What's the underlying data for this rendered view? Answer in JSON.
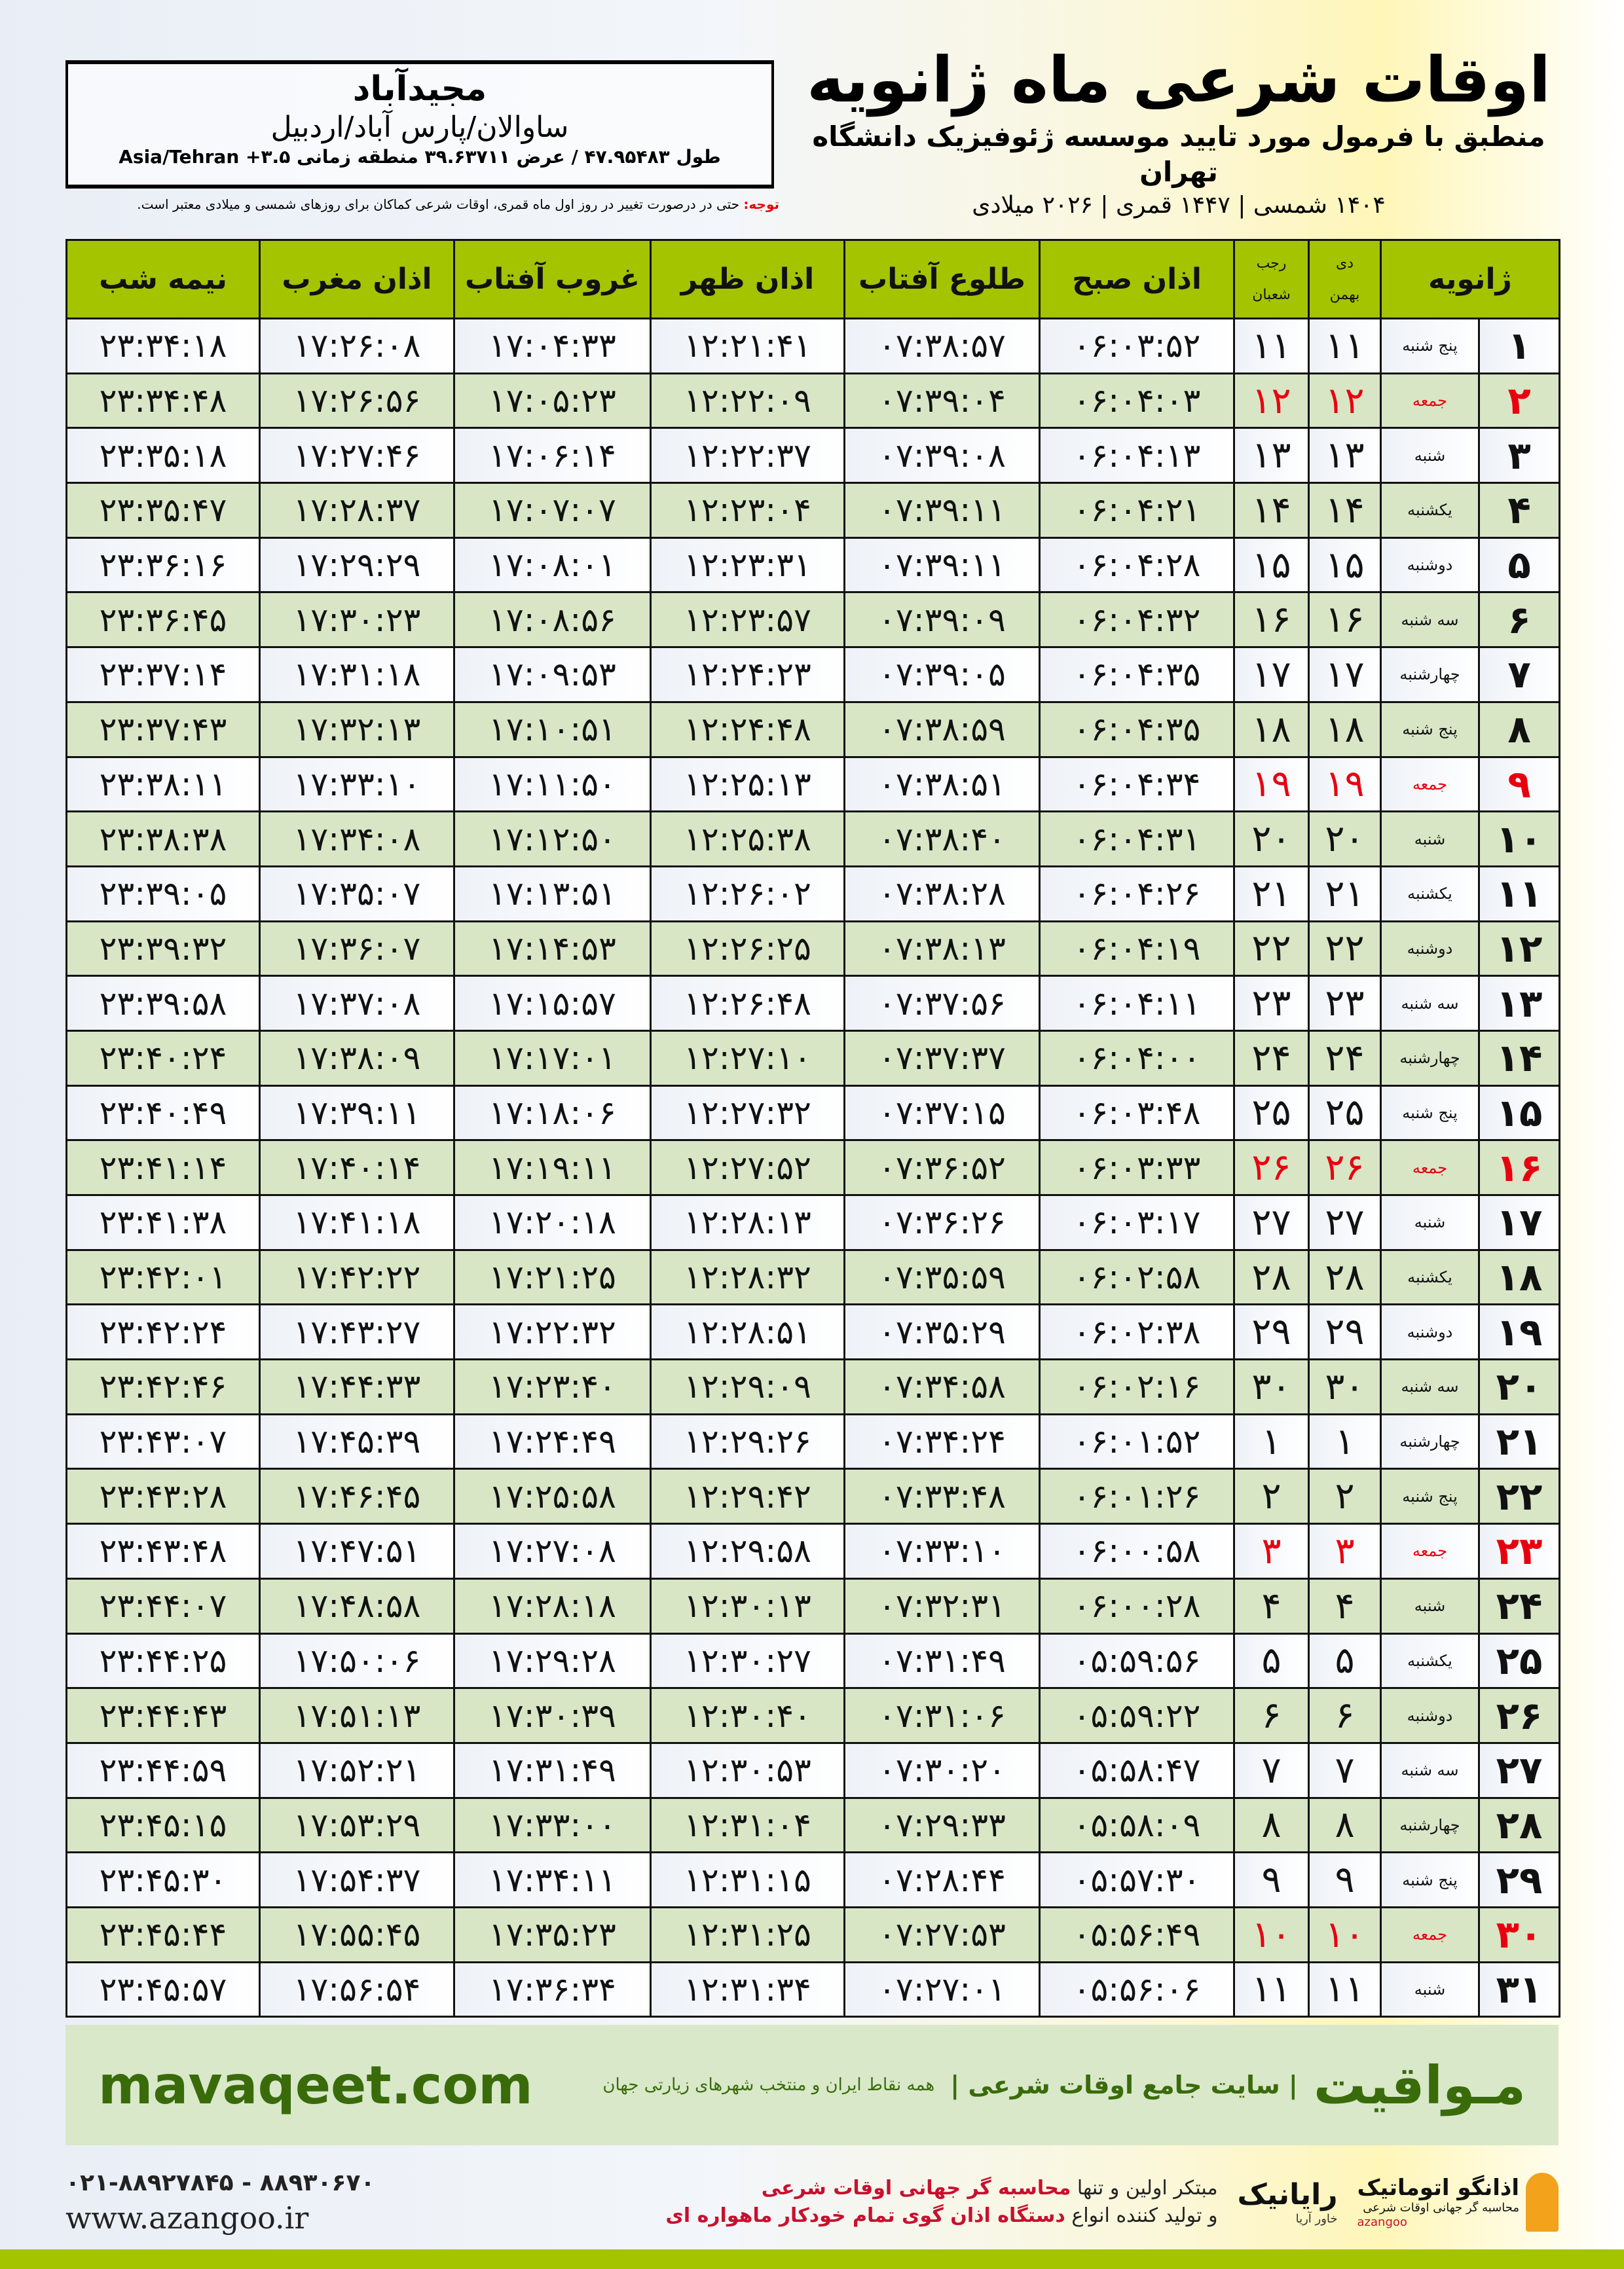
{
  "header": {
    "title": "اوقات شرعی ماه ژانویه",
    "subtitle": "منطبق با فرمول مورد تایید موسسه ژئوفیزیک دانشگاه تهران",
    "dates": "۱۴۰۴ شمسی | ۱۴۴۷ قمری | ۲۰۲۶ میلادی"
  },
  "location": {
    "city": "مجیدآباد",
    "region": "ساوالان/پارس آباد/اردبیل",
    "coords": "طول ۴۷.۹۵۴۸۳ / عرض ۳۹.۶۳۷۱۱ منطقه زمانی ۳.۵+ Asia/Tehran"
  },
  "note": {
    "label": "توجه:",
    "text": " حتی در درصورت تغییر در روز اول ماه قمری، اوقات شرعی کماکان برای روزهای شمسی و میلادی معتبر است."
  },
  "table": {
    "headers": {
      "day": "ژانویه",
      "dey": "دی",
      "bahman": "بهمن",
      "rajab": "رجب",
      "shaban": "شعبان",
      "sobh": "اذان صبح",
      "tolu": "طلوع آفتاب",
      "zohr": "اذان ظهر",
      "ghorub": "غروب آفتاب",
      "maghreb": "اذان مغرب",
      "nimeh": "نیمه شب"
    },
    "rows": [
      {
        "day": "۱",
        "wd": "پنج شنبه",
        "sh": "۱۱",
        "q": "۱۱",
        "sobh": "۰۶:۰۳:۵۲",
        "tolu": "۰۷:۳۸:۵۷",
        "zohr": "۱۲:۲۱:۴۱",
        "ghorub": "۱۷:۰۴:۳۳",
        "maghreb": "۱۷:۲۶:۰۸",
        "nimeh": "۲۳:۳۴:۱۸",
        "holiday": false
      },
      {
        "day": "۲",
        "wd": "جمعه",
        "sh": "۱۲",
        "q": "۱۲",
        "sobh": "۰۶:۰۴:۰۳",
        "tolu": "۰۷:۳۹:۰۴",
        "zohr": "۱۲:۲۲:۰۹",
        "ghorub": "۱۷:۰۵:۲۳",
        "maghreb": "۱۷:۲۶:۵۶",
        "nimeh": "۲۳:۳۴:۴۸",
        "holiday": true
      },
      {
        "day": "۳",
        "wd": "شنبه",
        "sh": "۱۳",
        "q": "۱۳",
        "sobh": "۰۶:۰۴:۱۳",
        "tolu": "۰۷:۳۹:۰۸",
        "zohr": "۱۲:۲۲:۳۷",
        "ghorub": "۱۷:۰۶:۱۴",
        "maghreb": "۱۷:۲۷:۴۶",
        "nimeh": "۲۳:۳۵:۱۸",
        "holiday": false
      },
      {
        "day": "۴",
        "wd": "یکشنبه",
        "sh": "۱۴",
        "q": "۱۴",
        "sobh": "۰۶:۰۴:۲۱",
        "tolu": "۰۷:۳۹:۱۱",
        "zohr": "۱۲:۲۳:۰۴",
        "ghorub": "۱۷:۰۷:۰۷",
        "maghreb": "۱۷:۲۸:۳۷",
        "nimeh": "۲۳:۳۵:۴۷",
        "holiday": false
      },
      {
        "day": "۵",
        "wd": "دوشنبه",
        "sh": "۱۵",
        "q": "۱۵",
        "sobh": "۰۶:۰۴:۲۸",
        "tolu": "۰۷:۳۹:۱۱",
        "zohr": "۱۲:۲۳:۳۱",
        "ghorub": "۱۷:۰۸:۰۱",
        "maghreb": "۱۷:۲۹:۲۹",
        "nimeh": "۲۳:۳۶:۱۶",
        "holiday": false
      },
      {
        "day": "۶",
        "wd": "سه شنبه",
        "sh": "۱۶",
        "q": "۱۶",
        "sobh": "۰۶:۰۴:۳۲",
        "tolu": "۰۷:۳۹:۰۹",
        "zohr": "۱۲:۲۳:۵۷",
        "ghorub": "۱۷:۰۸:۵۶",
        "maghreb": "۱۷:۳۰:۲۳",
        "nimeh": "۲۳:۳۶:۴۵",
        "holiday": false
      },
      {
        "day": "۷",
        "wd": "چهارشنبه",
        "sh": "۱۷",
        "q": "۱۷",
        "sobh": "۰۶:۰۴:۳۵",
        "tolu": "۰۷:۳۹:۰۵",
        "zohr": "۱۲:۲۴:۲۳",
        "ghorub": "۱۷:۰۹:۵۳",
        "maghreb": "۱۷:۳۱:۱۸",
        "nimeh": "۲۳:۳۷:۱۴",
        "holiday": false
      },
      {
        "day": "۸",
        "wd": "پنج شنبه",
        "sh": "۱۸",
        "q": "۱۸",
        "sobh": "۰۶:۰۴:۳۵",
        "tolu": "۰۷:۳۸:۵۹",
        "zohr": "۱۲:۲۴:۴۸",
        "ghorub": "۱۷:۱۰:۵۱",
        "maghreb": "۱۷:۳۲:۱۳",
        "nimeh": "۲۳:۳۷:۴۳",
        "holiday": false
      },
      {
        "day": "۹",
        "wd": "جمعه",
        "sh": "۱۹",
        "q": "۱۹",
        "sobh": "۰۶:۰۴:۳۴",
        "tolu": "۰۷:۳۸:۵۱",
        "zohr": "۱۲:۲۵:۱۳",
        "ghorub": "۱۷:۱۱:۵۰",
        "maghreb": "۱۷:۳۳:۱۰",
        "nimeh": "۲۳:۳۸:۱۱",
        "holiday": true
      },
      {
        "day": "۱۰",
        "wd": "شنبه",
        "sh": "۲۰",
        "q": "۲۰",
        "sobh": "۰۶:۰۴:۳۱",
        "tolu": "۰۷:۳۸:۴۰",
        "zohr": "۱۲:۲۵:۳۸",
        "ghorub": "۱۷:۱۲:۵۰",
        "maghreb": "۱۷:۳۴:۰۸",
        "nimeh": "۲۳:۳۸:۳۸",
        "holiday": false
      },
      {
        "day": "۱۱",
        "wd": "یکشنبه",
        "sh": "۲۱",
        "q": "۲۱",
        "sobh": "۰۶:۰۴:۲۶",
        "tolu": "۰۷:۳۸:۲۸",
        "zohr": "۱۲:۲۶:۰۲",
        "ghorub": "۱۷:۱۳:۵۱",
        "maghreb": "۱۷:۳۵:۰۷",
        "nimeh": "۲۳:۳۹:۰۵",
        "holiday": false
      },
      {
        "day": "۱۲",
        "wd": "دوشنبه",
        "sh": "۲۲",
        "q": "۲۲",
        "sobh": "۰۶:۰۴:۱۹",
        "tolu": "۰۷:۳۸:۱۳",
        "zohr": "۱۲:۲۶:۲۵",
        "ghorub": "۱۷:۱۴:۵۳",
        "maghreb": "۱۷:۳۶:۰۷",
        "nimeh": "۲۳:۳۹:۳۲",
        "holiday": false
      },
      {
        "day": "۱۳",
        "wd": "سه شنبه",
        "sh": "۲۳",
        "q": "۲۳",
        "sobh": "۰۶:۰۴:۱۱",
        "tolu": "۰۷:۳۷:۵۶",
        "zohr": "۱۲:۲۶:۴۸",
        "ghorub": "۱۷:۱۵:۵۷",
        "maghreb": "۱۷:۳۷:۰۸",
        "nimeh": "۲۳:۳۹:۵۸",
        "holiday": false
      },
      {
        "day": "۱۴",
        "wd": "چهارشنبه",
        "sh": "۲۴",
        "q": "۲۴",
        "sobh": "۰۶:۰۴:۰۰",
        "tolu": "۰۷:۳۷:۳۷",
        "zohr": "۱۲:۲۷:۱۰",
        "ghorub": "۱۷:۱۷:۰۱",
        "maghreb": "۱۷:۳۸:۰۹",
        "nimeh": "۲۳:۴۰:۲۴",
        "holiday": false
      },
      {
        "day": "۱۵",
        "wd": "پنج شنبه",
        "sh": "۲۵",
        "q": "۲۵",
        "sobh": "۰۶:۰۳:۴۸",
        "tolu": "۰۷:۳۷:۱۵",
        "zohr": "۱۲:۲۷:۳۲",
        "ghorub": "۱۷:۱۸:۰۶",
        "maghreb": "۱۷:۳۹:۱۱",
        "nimeh": "۲۳:۴۰:۴۹",
        "holiday": false
      },
      {
        "day": "۱۶",
        "wd": "جمعه",
        "sh": "۲۶",
        "q": "۲۶",
        "sobh": "۰۶:۰۳:۳۳",
        "tolu": "۰۷:۳۶:۵۲",
        "zohr": "۱۲:۲۷:۵۲",
        "ghorub": "۱۷:۱۹:۱۱",
        "maghreb": "۱۷:۴۰:۱۴",
        "nimeh": "۲۳:۴۱:۱۴",
        "holiday": true
      },
      {
        "day": "۱۷",
        "wd": "شنبه",
        "sh": "۲۷",
        "q": "۲۷",
        "sobh": "۰۶:۰۳:۱۷",
        "tolu": "۰۷:۳۶:۲۶",
        "zohr": "۱۲:۲۸:۱۳",
        "ghorub": "۱۷:۲۰:۱۸",
        "maghreb": "۱۷:۴۱:۱۸",
        "nimeh": "۲۳:۴۱:۳۸",
        "holiday": false
      },
      {
        "day": "۱۸",
        "wd": "یکشنبه",
        "sh": "۲۸",
        "q": "۲۸",
        "sobh": "۰۶:۰۲:۵۸",
        "tolu": "۰۷:۳۵:۵۹",
        "zohr": "۱۲:۲۸:۳۲",
        "ghorub": "۱۷:۲۱:۲۵",
        "maghreb": "۱۷:۴۲:۲۲",
        "nimeh": "۲۳:۴۲:۰۱",
        "holiday": false
      },
      {
        "day": "۱۹",
        "wd": "دوشنبه",
        "sh": "۲۹",
        "q": "۲۹",
        "sobh": "۰۶:۰۲:۳۸",
        "tolu": "۰۷:۳۵:۲۹",
        "zohr": "۱۲:۲۸:۵۱",
        "ghorub": "۱۷:۲۲:۳۲",
        "maghreb": "۱۷:۴۳:۲۷",
        "nimeh": "۲۳:۴۲:۲۴",
        "holiday": false
      },
      {
        "day": "۲۰",
        "wd": "سه شنبه",
        "sh": "۳۰",
        "q": "۳۰",
        "sobh": "۰۶:۰۲:۱۶",
        "tolu": "۰۷:۳۴:۵۸",
        "zohr": "۱۲:۲۹:۰۹",
        "ghorub": "۱۷:۲۳:۴۰",
        "maghreb": "۱۷:۴۴:۳۳",
        "nimeh": "۲۳:۴۲:۴۶",
        "holiday": false
      },
      {
        "day": "۲۱",
        "wd": "چهارشنبه",
        "sh": "۱",
        "q": "۱",
        "sobh": "۰۶:۰۱:۵۲",
        "tolu": "۰۷:۳۴:۲۴",
        "zohr": "۱۲:۲۹:۲۶",
        "ghorub": "۱۷:۲۴:۴۹",
        "maghreb": "۱۷:۴۵:۳۹",
        "nimeh": "۲۳:۴۳:۰۷",
        "holiday": false
      },
      {
        "day": "۲۲",
        "wd": "پنج شنبه",
        "sh": "۲",
        "q": "۲",
        "sobh": "۰۶:۰۱:۲۶",
        "tolu": "۰۷:۳۳:۴۸",
        "zohr": "۱۲:۲۹:۴۲",
        "ghorub": "۱۷:۲۵:۵۸",
        "maghreb": "۱۷:۴۶:۴۵",
        "nimeh": "۲۳:۴۳:۲۸",
        "holiday": false
      },
      {
        "day": "۲۳",
        "wd": "جمعه",
        "sh": "۳",
        "q": "۳",
        "sobh": "۰۶:۰۰:۵۸",
        "tolu": "۰۷:۳۳:۱۰",
        "zohr": "۱۲:۲۹:۵۸",
        "ghorub": "۱۷:۲۷:۰۸",
        "maghreb": "۱۷:۴۷:۵۱",
        "nimeh": "۲۳:۴۳:۴۸",
        "holiday": true
      },
      {
        "day": "۲۴",
        "wd": "شنبه",
        "sh": "۴",
        "q": "۴",
        "sobh": "۰۶:۰۰:۲۸",
        "tolu": "۰۷:۳۲:۳۱",
        "zohr": "۱۲:۳۰:۱۳",
        "ghorub": "۱۷:۲۸:۱۸",
        "maghreb": "۱۷:۴۸:۵۸",
        "nimeh": "۲۳:۴۴:۰۷",
        "holiday": false
      },
      {
        "day": "۲۵",
        "wd": "یکشنبه",
        "sh": "۵",
        "q": "۵",
        "sobh": "۰۵:۵۹:۵۶",
        "tolu": "۰۷:۳۱:۴۹",
        "zohr": "۱۲:۳۰:۲۷",
        "ghorub": "۱۷:۲۹:۲۸",
        "maghreb": "۱۷:۵۰:۰۶",
        "nimeh": "۲۳:۴۴:۲۵",
        "holiday": false
      },
      {
        "day": "۲۶",
        "wd": "دوشنبه",
        "sh": "۶",
        "q": "۶",
        "sobh": "۰۵:۵۹:۲۲",
        "tolu": "۰۷:۳۱:۰۶",
        "zohr": "۱۲:۳۰:۴۰",
        "ghorub": "۱۷:۳۰:۳۹",
        "maghreb": "۱۷:۵۱:۱۳",
        "nimeh": "۲۳:۴۴:۴۳",
        "holiday": false
      },
      {
        "day": "۲۷",
        "wd": "سه شنبه",
        "sh": "۷",
        "q": "۷",
        "sobh": "۰۵:۵۸:۴۷",
        "tolu": "۰۷:۳۰:۲۰",
        "zohr": "۱۲:۳۰:۵۳",
        "ghorub": "۱۷:۳۱:۴۹",
        "maghreb": "۱۷:۵۲:۲۱",
        "nimeh": "۲۳:۴۴:۵۹",
        "holiday": false
      },
      {
        "day": "۲۸",
        "wd": "چهارشنبه",
        "sh": "۸",
        "q": "۸",
        "sobh": "۰۵:۵۸:۰۹",
        "tolu": "۰۷:۲۹:۳۳",
        "zohr": "۱۲:۳۱:۰۴",
        "ghorub": "۱۷:۳۳:۰۰",
        "maghreb": "۱۷:۵۳:۲۹",
        "nimeh": "۲۳:۴۵:۱۵",
        "holiday": false
      },
      {
        "day": "۲۹",
        "wd": "پنج شنبه",
        "sh": "۹",
        "q": "۹",
        "sobh": "۰۵:۵۷:۳۰",
        "tolu": "۰۷:۲۸:۴۴",
        "zohr": "۱۲:۳۱:۱۵",
        "ghorub": "۱۷:۳۴:۱۱",
        "maghreb": "۱۷:۵۴:۳۷",
        "nimeh": "۲۳:۴۵:۳۰",
        "holiday": false
      },
      {
        "day": "۳۰",
        "wd": "جمعه",
        "sh": "۱۰",
        "q": "۱۰",
        "sobh": "۰۵:۵۶:۴۹",
        "tolu": "۰۷:۲۷:۵۳",
        "zohr": "۱۲:۳۱:۲۵",
        "ghorub": "۱۷:۳۵:۲۳",
        "maghreb": "۱۷:۵۵:۴۵",
        "nimeh": "۲۳:۴۵:۴۴",
        "holiday": true
      },
      {
        "day": "۳۱",
        "wd": "شنبه",
        "sh": "۱۱",
        "q": "۱۱",
        "sobh": "۰۵:۵۶:۰۶",
        "tolu": "۰۷:۲۷:۰۱",
        "zohr": "۱۲:۳۱:۳۴",
        "ghorub": "۱۷:۳۶:۳۴",
        "maghreb": "۱۷:۵۶:۵۴",
        "nimeh": "۲۳:۴۵:۵۷",
        "holiday": false
      }
    ]
  },
  "footer": {
    "brand": "مـواقیت",
    "brand_sub": "| سایت جامع اوقات شرعی |",
    "brand_tag": "همه نقاط ایران و منتخب شهرهای زیارتی جهان",
    "site": "mavaqeet.com",
    "phone": "۰۲۱-۸۸۹۲۷۸۴۵ - ۸۸۹۳۰۶۷۰",
    "web": "www.azangoo.ir",
    "promo1a": "مبتکر اولین و تنها ",
    "promo1b": "محاسبه گر جهانی اوقات شرعی",
    "promo2a": "و تولید کننده انواع ",
    "promo2b": "دستگاه اذان گوی تمام خودکار ماهواره ای",
    "logo1": "رایانیک",
    "logo1_sub": "خاور آریا",
    "logo2": "اذانگو اتوماتیک",
    "logo2_sub": "محاسبه گر جهانی اوقات شرعی",
    "logo2_en": "azangoo"
  },
  "colors": {
    "header_green": "#a4c400",
    "row_green": "#d8e6c6",
    "holiday_red": "#e8000f",
    "brand_green": "#3a6b0b"
  }
}
